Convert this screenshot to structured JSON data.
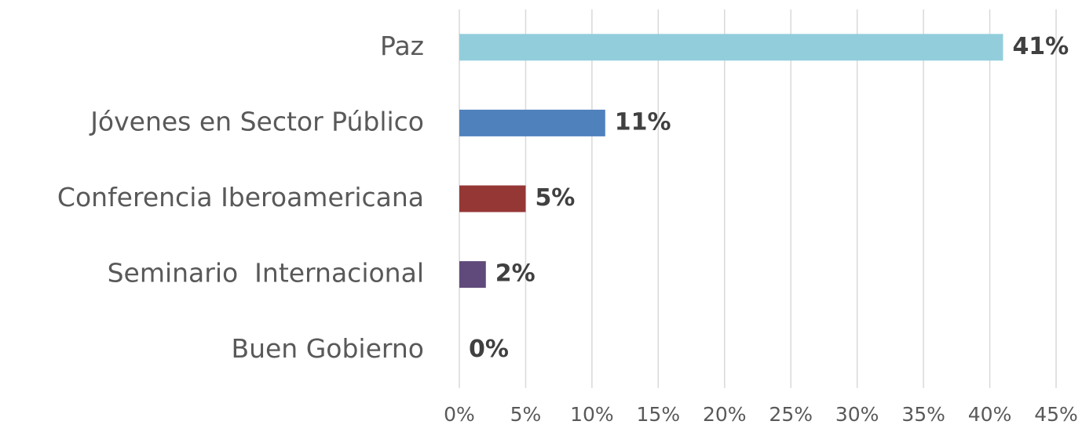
{
  "chart_data": {
    "type": "bar",
    "orientation": "horizontal",
    "categories": [
      "Paz",
      "Jóvenes en Sector Público",
      "Conferencia Iberoamericana",
      "Seminario  Internacional",
      "Buen Gobierno"
    ],
    "values": [
      41,
      11,
      5,
      2,
      0
    ],
    "value_labels": [
      "41%",
      "11%",
      "5%",
      "2%",
      "0%"
    ],
    "colors": [
      "#92cddc",
      "#4f81bd",
      "#953735",
      "#604a7b",
      "#4bacc6"
    ],
    "xlim": [
      0,
      45
    ],
    "xticks": [
      {
        "value": 0,
        "label": "0%"
      },
      {
        "value": 5,
        "label": "5%"
      },
      {
        "value": 10,
        "label": "10%"
      },
      {
        "value": 15,
        "label": "15%"
      },
      {
        "value": 20,
        "label": "20%"
      },
      {
        "value": 25,
        "label": "25%"
      },
      {
        "value": 30,
        "label": "30%"
      },
      {
        "value": 35,
        "label": "35%"
      },
      {
        "value": 40,
        "label": "40%"
      },
      {
        "value": 45,
        "label": "45%"
      }
    ],
    "grid": true
  }
}
